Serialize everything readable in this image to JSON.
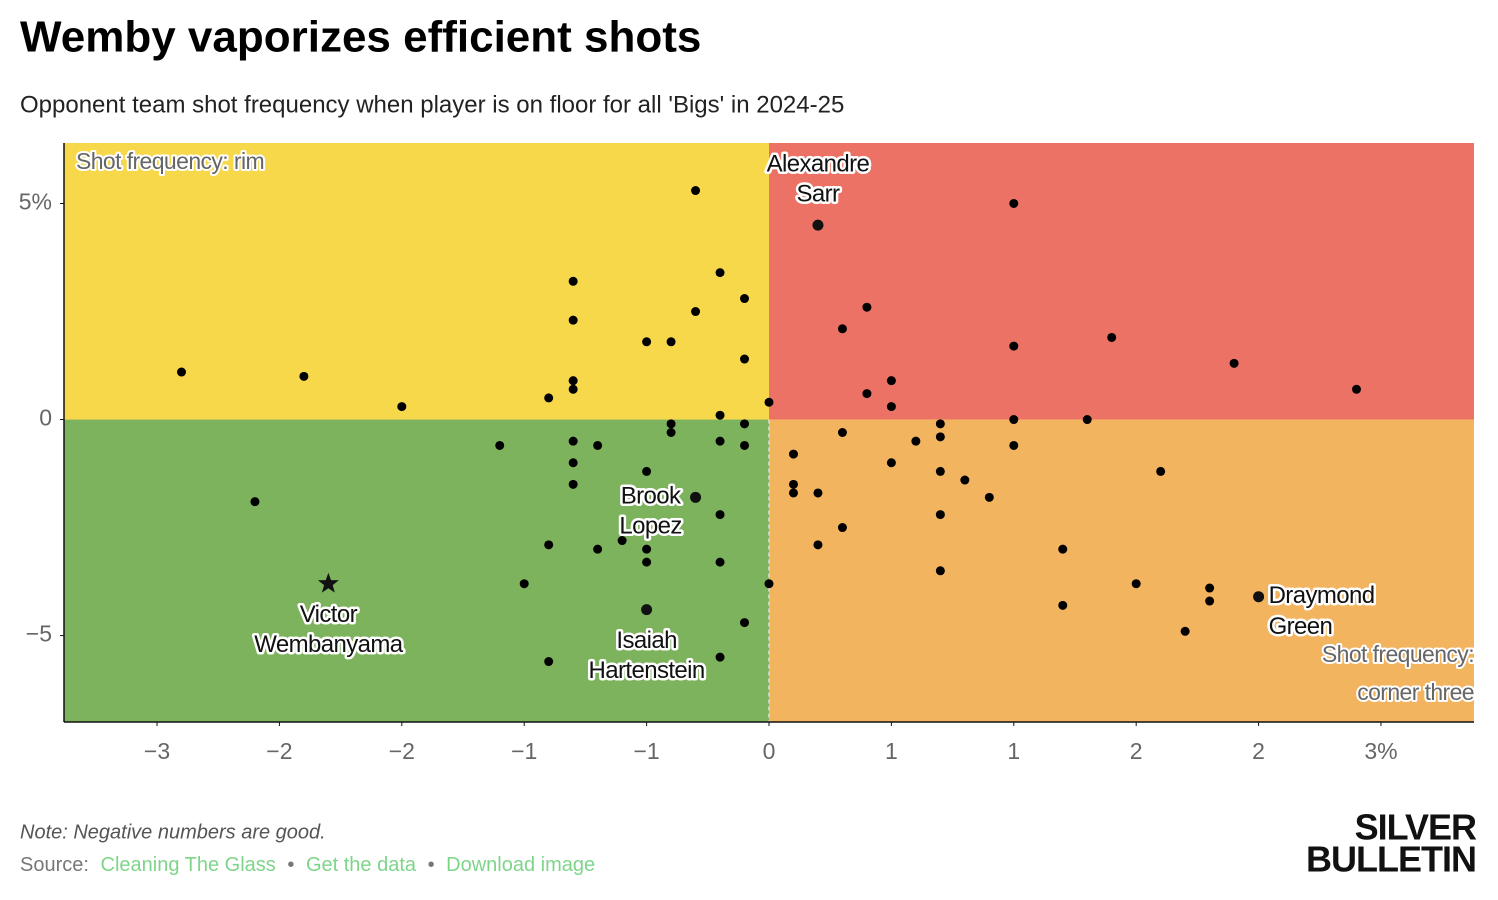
{
  "chart_data": {
    "type": "scatter",
    "title": "Wemby vaporizes efficient shots",
    "subtitle": "Opponent team shot frequency when player is on floor for all 'Bigs' in 2024-25",
    "xlim": [
      -2.88,
      2.88
    ],
    "ylim": [
      -7,
      6.4
    ],
    "xticks": [
      {
        "value": -2.5,
        "label": "−3"
      },
      {
        "value": -2,
        "label": "−2"
      },
      {
        "value": -1.5,
        "label": "−2"
      },
      {
        "value": -1,
        "label": "−1"
      },
      {
        "value": -0.5,
        "label": "−1"
      },
      0,
      {
        "value": 0.5,
        "label": "1"
      },
      1,
      {
        "value": 1.5,
        "label": "2"
      },
      2,
      {
        "value": 2.5,
        "label": "3%"
      }
    ],
    "yticks": [
      {
        "value": -5,
        "label": "−5"
      },
      0,
      {
        "value": 5,
        "label": "5%"
      }
    ],
    "quadrants": {
      "top_left": "#f8d84b",
      "top_right": "#ec7265",
      "bottom_left": "#7db35c",
      "bottom_right": "#f3b45f"
    },
    "quadrant_labels": {
      "top_left": [
        "Shot frequency: rim"
      ],
      "bottom_right": [
        "Shot frequency:",
        "corner three"
      ]
    },
    "series": [
      {
        "color": "#000000",
        "x": [
          -2.4,
          -1.9,
          -1.5,
          -2.1,
          -1.1,
          -0.9,
          -0.9,
          -0.9,
          -0.8,
          -0.8,
          -0.8,
          -0.8,
          -0.8,
          -0.8,
          -0.8,
          -0.7,
          -0.7,
          -0.6,
          -1.0,
          -0.5,
          -0.5,
          -0.5,
          -0.5,
          -0.4,
          -0.4,
          -0.4,
          -0.3,
          -0.3,
          -0.2,
          -0.2,
          -0.2,
          -0.2,
          -0.2,
          -0.2,
          -0.1,
          -0.1,
          -0.1,
          -0.1,
          -0.1,
          0.0,
          0.0,
          0.1,
          0.1,
          0.1,
          0.2,
          0.2,
          0.3,
          0.3,
          0.3,
          0.4,
          0.4,
          0.5,
          0.5,
          0.5,
          0.6,
          0.7,
          0.7,
          0.7,
          0.7,
          0.7,
          0.8,
          0.9,
          1.0,
          1.0,
          1.0,
          1.0,
          1.2,
          1.2,
          1.3,
          1.4,
          1.5,
          1.6,
          1.7,
          1.8,
          1.8,
          1.9,
          2.4
        ],
        "y": [
          1.1,
          1.0,
          0.3,
          -1.9,
          -0.6,
          0.5,
          -2.9,
          -5.6,
          3.2,
          2.3,
          0.9,
          0.7,
          -0.5,
          -1.0,
          -1.5,
          -0.6,
          -3.0,
          -2.8,
          -3.8,
          1.8,
          -1.2,
          -3.0,
          -3.3,
          1.8,
          -0.1,
          -0.3,
          5.3,
          2.5,
          3.4,
          0.1,
          -0.5,
          -2.2,
          -3.3,
          -5.5,
          2.8,
          1.4,
          -0.1,
          -0.6,
          -4.7,
          0.4,
          -3.8,
          -0.8,
          -1.5,
          -1.7,
          -1.7,
          -2.9,
          2.1,
          -0.3,
          -2.5,
          2.6,
          0.6,
          0.9,
          0.3,
          -1.0,
          -0.5,
          -0.1,
          -0.4,
          -1.2,
          -2.2,
          -3.5,
          -1.4,
          -1.8,
          5.0,
          1.7,
          0.0,
          -0.6,
          -3.0,
          -4.3,
          0.0,
          1.9,
          -3.8,
          -1.2,
          -4.9,
          -3.9,
          -4.2,
          1.3,
          0.7
        ]
      }
    ],
    "highlights": [
      {
        "label_lines": [
          "Alexandre",
          "Sarr"
        ],
        "x": 0.2,
        "y": 4.5,
        "marker": "circle",
        "position": "above"
      },
      {
        "label_lines": [
          "Victor",
          "Wembanyama"
        ],
        "x": -1.8,
        "y": -3.8,
        "marker": "star",
        "position": "below"
      },
      {
        "label_lines": [
          "Brook",
          "Lopez"
        ],
        "x": -0.3,
        "y": -1.8,
        "marker": "circle",
        "position": "left"
      },
      {
        "label_lines": [
          "Isaiah",
          "Hartenstein"
        ],
        "x": -0.5,
        "y": -4.4,
        "marker": "circle",
        "position": "below"
      },
      {
        "label_lines": [
          "Draymond",
          "Green"
        ],
        "x": 2.0,
        "y": -4.1,
        "marker": "circle",
        "position": "right"
      }
    ],
    "note": "Note: Negative numbers are good.",
    "source_prefix": "Source:",
    "links": [
      "Cleaning The Glass",
      "Get the data",
      "Download image"
    ],
    "logo": [
      "SILVER",
      "BULLETIN"
    ]
  }
}
